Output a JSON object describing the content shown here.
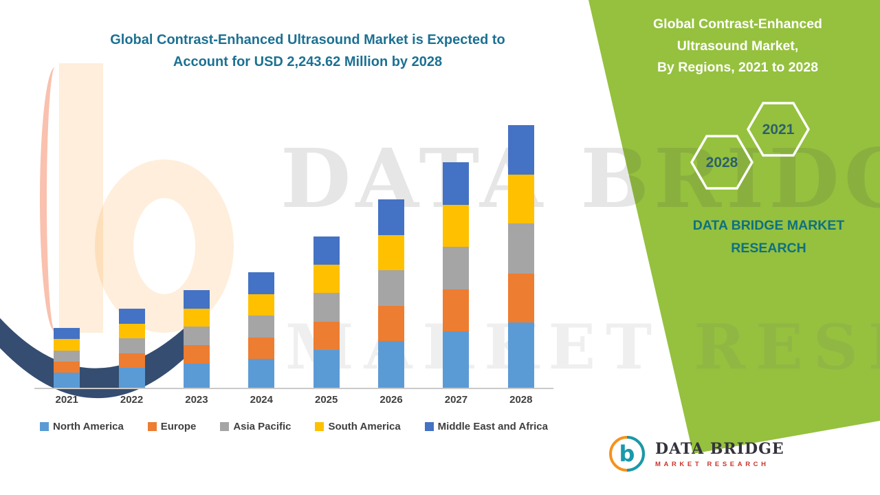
{
  "title": {
    "line1": "Global Contrast-Enhanced Ultrasound Market is Expected to",
    "line2": "Account for USD 2,243.62 Million by 2028"
  },
  "panel": {
    "title_line1": "Global Contrast-Enhanced",
    "title_line2": "Ultrasound Market,",
    "title_line3": "By Regions, 2021 to 2028",
    "hex_front_label": "2021",
    "hex_back_label": "2028",
    "brand_line1": "DATA BRIDGE MARKET",
    "brand_line2": "RESEARCH",
    "bg_color": "#95C13E"
  },
  "watermark": {
    "big_text": "DATA BRIDGE",
    "sub_text": "MARKET RESEARCH"
  },
  "footer_logo": {
    "letter": "b",
    "name": "DATA BRIDGE",
    "subtitle": "MARKET RESEARCH"
  },
  "colors": {
    "title_teal": "#1C7193",
    "panel_green": "#95C13E",
    "brand_teal": "#0F7080",
    "hex_label": "#2E5F6C",
    "footer_name": "#34333C",
    "footer_subtitle_red": "#C9342C",
    "axis_line": "#C9C9C9"
  },
  "chart_data": {
    "type": "bar",
    "stacked": true,
    "title": "Global Contrast-Enhanced Ultrasound Market is Expected to Account for USD 2,243.62 Million by 2028",
    "unit": "USD Million",
    "categories": [
      "2021",
      "2022",
      "2023",
      "2024",
      "2025",
      "2026",
      "2027",
      "2028"
    ],
    "series": [
      {
        "name": "North America",
        "color": "#5B9BD5",
        "values": [
          128,
          168,
          208,
          246,
          322,
          400,
          480,
          560
        ]
      },
      {
        "name": "Europe",
        "color": "#ED7D31",
        "values": [
          95,
          126,
          155,
          184,
          240,
          299,
          358,
          417
        ]
      },
      {
        "name": "Asia Pacific",
        "color": "#A5A5A5",
        "values": [
          97,
          128,
          159,
          187,
          246,
          306,
          366,
          427
        ]
      },
      {
        "name": "South America",
        "color": "#FFC000",
        "values": [
          95,
          126,
          156,
          184,
          241,
          300,
          359,
          418
        ]
      },
      {
        "name": "Middle East and Africa",
        "color": "#4472C4",
        "values": [
          96,
          127,
          156,
          186,
          243,
          304,
          363,
          421.62
        ]
      }
    ],
    "totals": [
      511,
      675,
      834,
      987,
      1292,
      1609,
      1926,
      2243.62
    ],
    "ylim": [
      0,
      2243.62
    ],
    "grid": false,
    "legend_position": "bottom",
    "xlabel": "",
    "ylabel": ""
  }
}
